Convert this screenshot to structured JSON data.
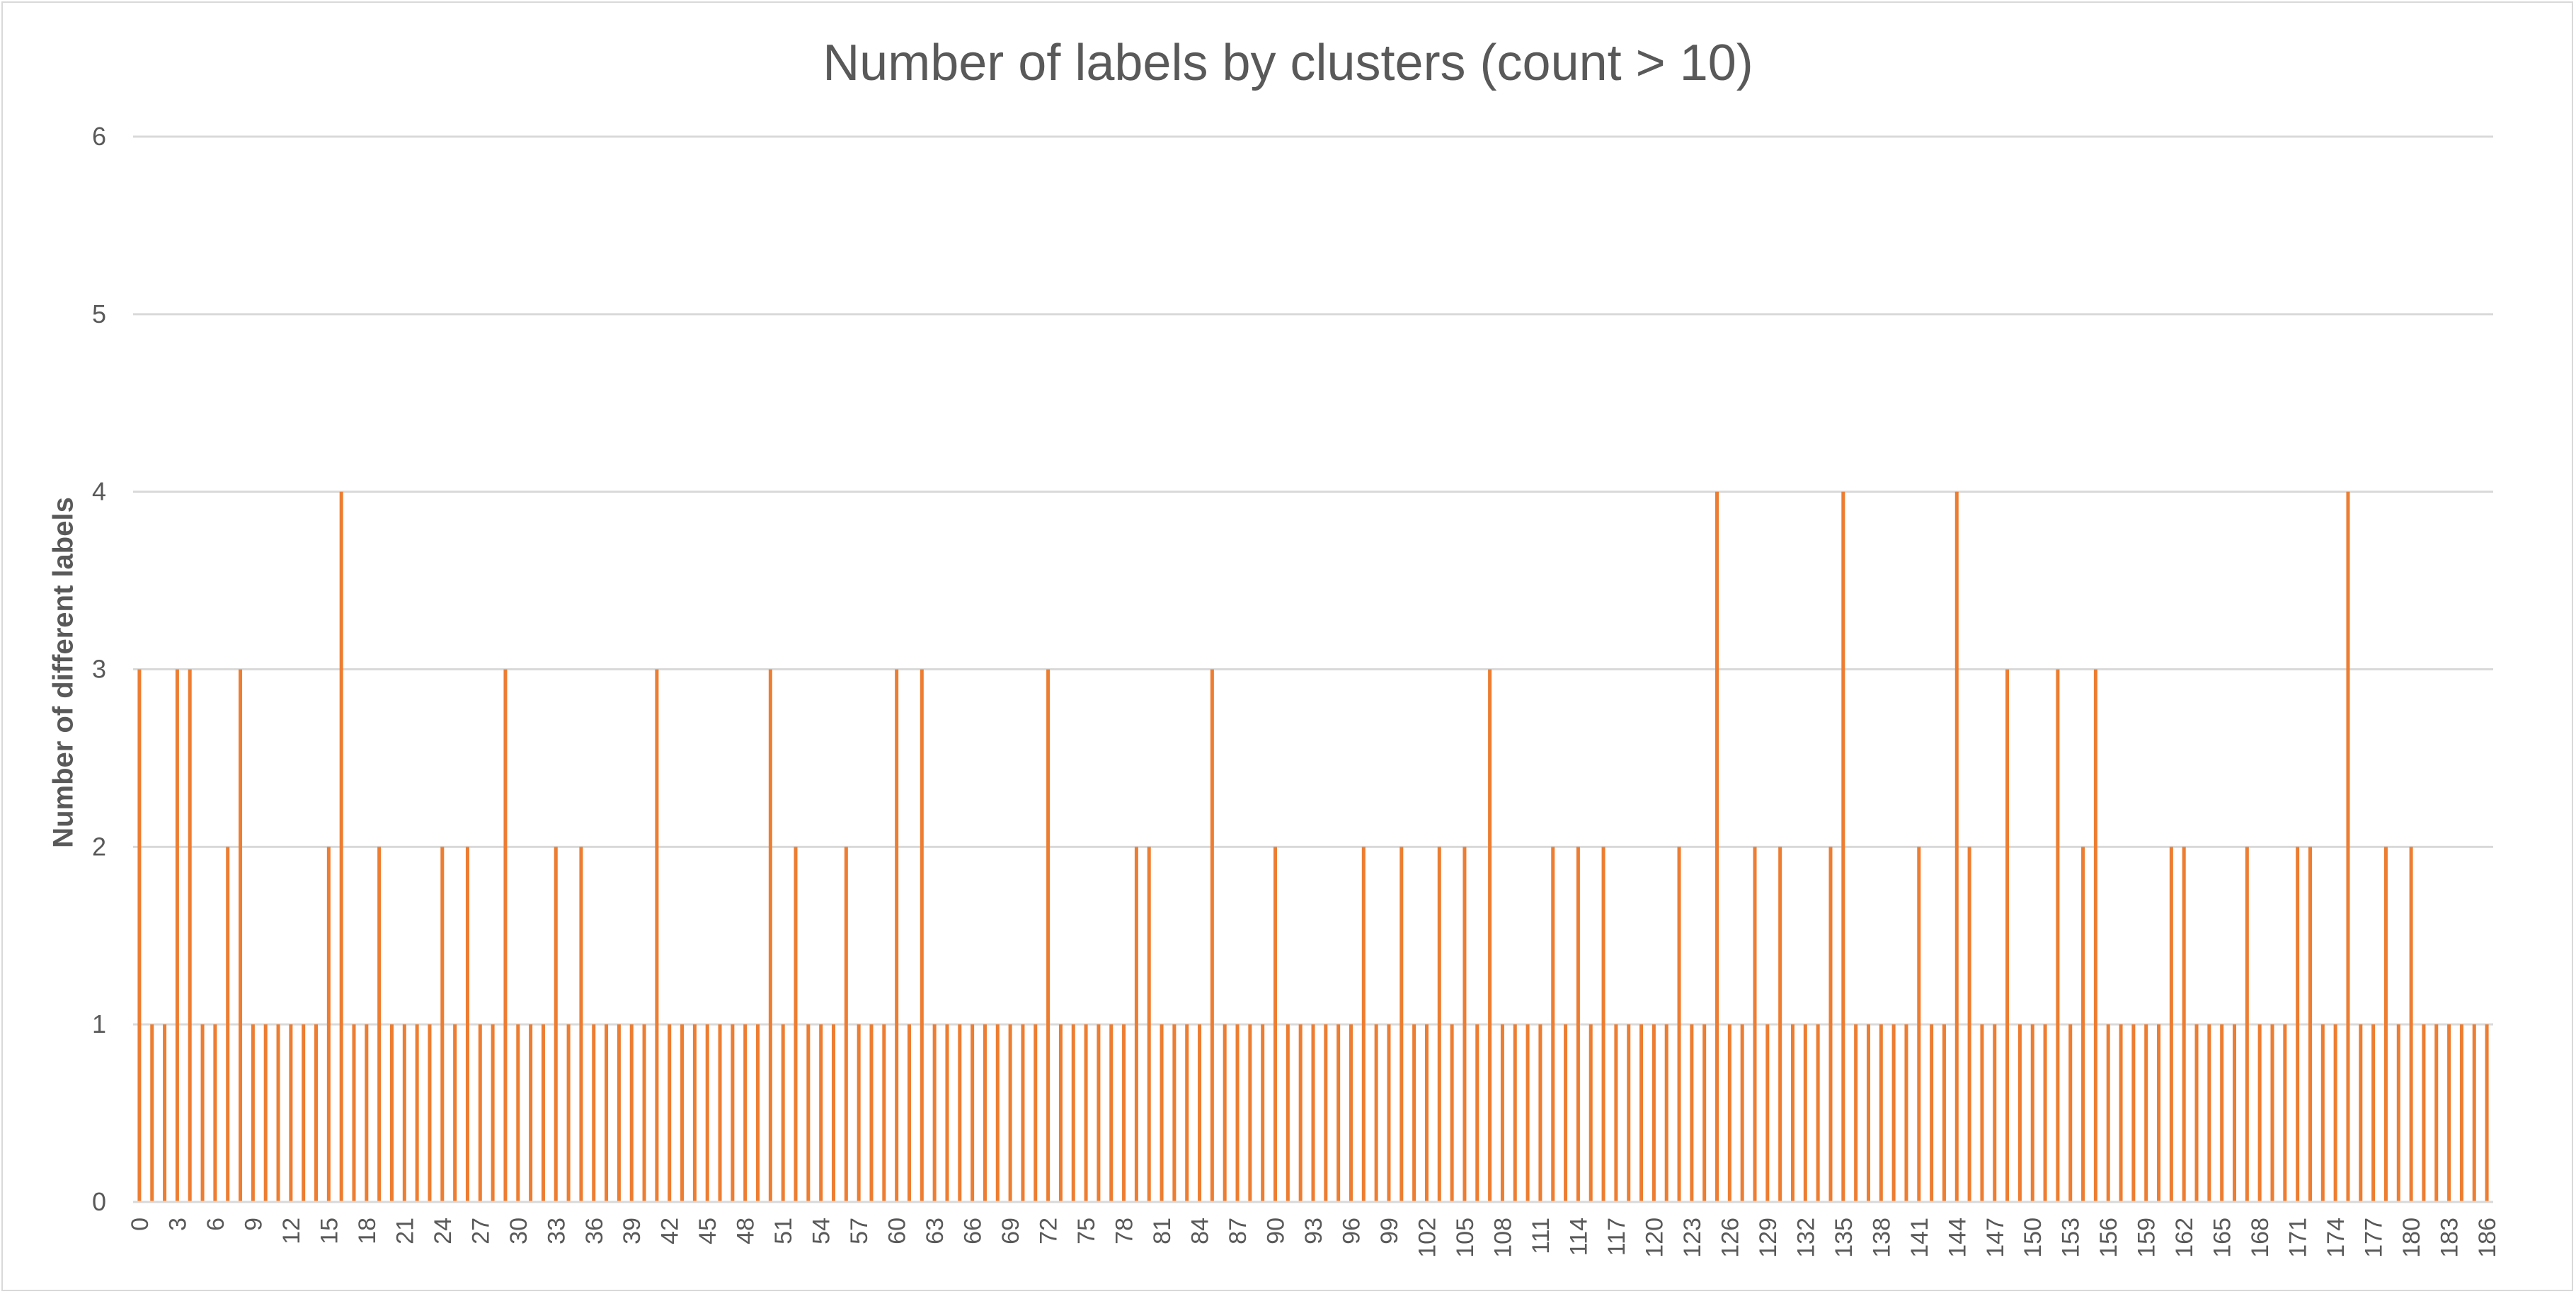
{
  "chart_data": {
    "type": "bar",
    "title": "Number of labels by clusters (count > 10)",
    "xlabel": "",
    "ylabel": "Number of different labels",
    "ylim": [
      0,
      6
    ],
    "y_ticks": [
      0,
      1,
      2,
      3,
      4,
      5,
      6
    ],
    "x_tick_step": 3,
    "grid": true,
    "legend": "none",
    "bar_color": "#ed7d31",
    "categories": [
      0,
      1,
      2,
      3,
      4,
      5,
      6,
      7,
      8,
      9,
      10,
      11,
      12,
      13,
      14,
      15,
      16,
      17,
      18,
      19,
      20,
      21,
      22,
      23,
      24,
      25,
      26,
      27,
      28,
      29,
      30,
      31,
      32,
      33,
      34,
      35,
      36,
      37,
      38,
      39,
      40,
      41,
      42,
      43,
      44,
      45,
      46,
      47,
      48,
      49,
      50,
      51,
      52,
      53,
      54,
      55,
      56,
      57,
      58,
      59,
      60,
      61,
      62,
      63,
      64,
      65,
      66,
      67,
      68,
      69,
      70,
      71,
      72,
      73,
      74,
      75,
      76,
      77,
      78,
      79,
      80,
      81,
      82,
      83,
      84,
      85,
      86,
      87,
      88,
      89,
      90,
      91,
      92,
      93,
      94,
      95,
      96,
      97,
      98,
      99,
      100,
      101,
      102,
      103,
      104,
      105,
      106,
      107,
      108,
      109,
      110,
      111,
      112,
      113,
      114,
      115,
      116,
      117,
      118,
      119,
      120,
      121,
      122,
      123,
      124,
      125,
      126,
      127,
      128,
      129,
      130,
      131,
      132,
      133,
      134,
      135,
      136,
      137,
      138,
      139,
      140,
      141,
      142,
      143,
      144,
      145,
      146,
      147,
      148,
      149,
      150,
      151,
      152,
      153,
      154,
      155,
      156,
      157,
      158,
      159,
      160,
      161,
      162,
      163,
      164,
      165,
      166,
      167,
      168,
      169,
      170,
      171,
      172,
      173,
      174,
      175,
      176,
      177,
      178,
      179,
      180,
      181,
      182,
      183,
      184,
      185,
      186
    ],
    "values": [
      3,
      1,
      1,
      3,
      3,
      1,
      1,
      2,
      3,
      1,
      1,
      1,
      1,
      1,
      1,
      2,
      4,
      1,
      1,
      2,
      1,
      1,
      1,
      1,
      2,
      1,
      2,
      1,
      1,
      3,
      1,
      1,
      1,
      2,
      1,
      2,
      1,
      1,
      1,
      1,
      1,
      3,
      1,
      1,
      1,
      1,
      1,
      1,
      1,
      1,
      3,
      1,
      2,
      1,
      1,
      1,
      2,
      1,
      1,
      1,
      3,
      1,
      3,
      1,
      1,
      1,
      1,
      1,
      1,
      1,
      1,
      1,
      3,
      1,
      1,
      1,
      1,
      1,
      1,
      2,
      2,
      1,
      1,
      1,
      1,
      3,
      1,
      1,
      1,
      1,
      2,
      1,
      1,
      1,
      1,
      1,
      1,
      2,
      1,
      1,
      2,
      1,
      1,
      2,
      1,
      2,
      1,
      3,
      1,
      1,
      1,
      1,
      2,
      1,
      2,
      1,
      2,
      1,
      1,
      1,
      1,
      1,
      2,
      1,
      1,
      4,
      1,
      1,
      2,
      1,
      2,
      1,
      1,
      1,
      2,
      4,
      1,
      1,
      1,
      1,
      1,
      2,
      1,
      1,
      4,
      2,
      1,
      1,
      3,
      1,
      1,
      1,
      3,
      1,
      2,
      3,
      1,
      1,
      1,
      1,
      1,
      2,
      2,
      1,
      1,
      1,
      1,
      2,
      1,
      1,
      1,
      2,
      2,
      1,
      1,
      4,
      1,
      1,
      2,
      1,
      2,
      1,
      1,
      1,
      1,
      1,
      1
    ]
  }
}
